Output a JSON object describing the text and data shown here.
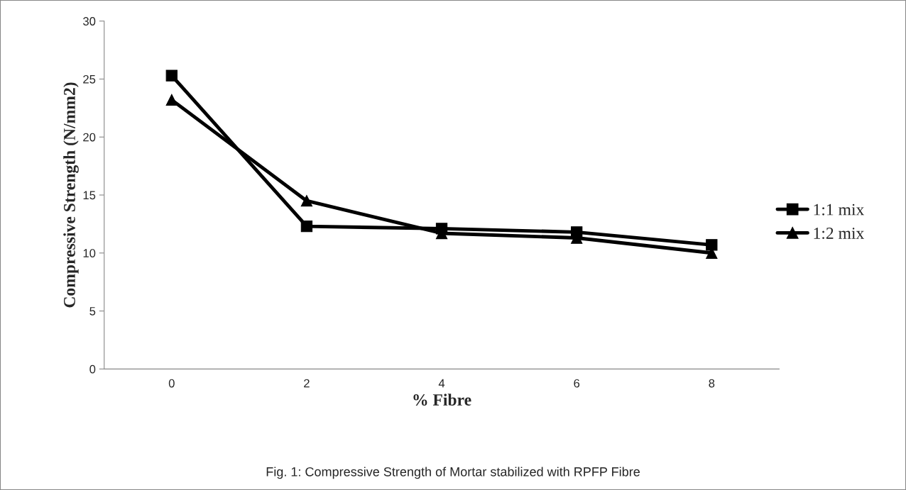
{
  "chart_data": {
    "type": "line",
    "xlabel": "% Fibre",
    "ylabel": "Compressive Strength (N/mm2)",
    "categories": [
      "0",
      "2",
      "4",
      "6",
      "8"
    ],
    "series": [
      {
        "name": "1:1 mix",
        "color": "#000000",
        "marker": "square",
        "values": [
          25.3,
          12.3,
          12.1,
          11.8,
          10.7
        ]
      },
      {
        "name": "1:2 mix",
        "color": "#000000",
        "marker": "triangle",
        "values": [
          23.2,
          14.5,
          11.7,
          11.3,
          10.0
        ]
      }
    ],
    "ylim": [
      0,
      30
    ],
    "yticks": [
      0,
      5,
      10,
      15,
      20,
      25,
      30
    ],
    "grid": false,
    "legend": "right",
    "line_style": "solid",
    "annotations": [
      "Fig. 1: Compressive Strength of Mortar stabilized with RPFP Fibre"
    ]
  }
}
